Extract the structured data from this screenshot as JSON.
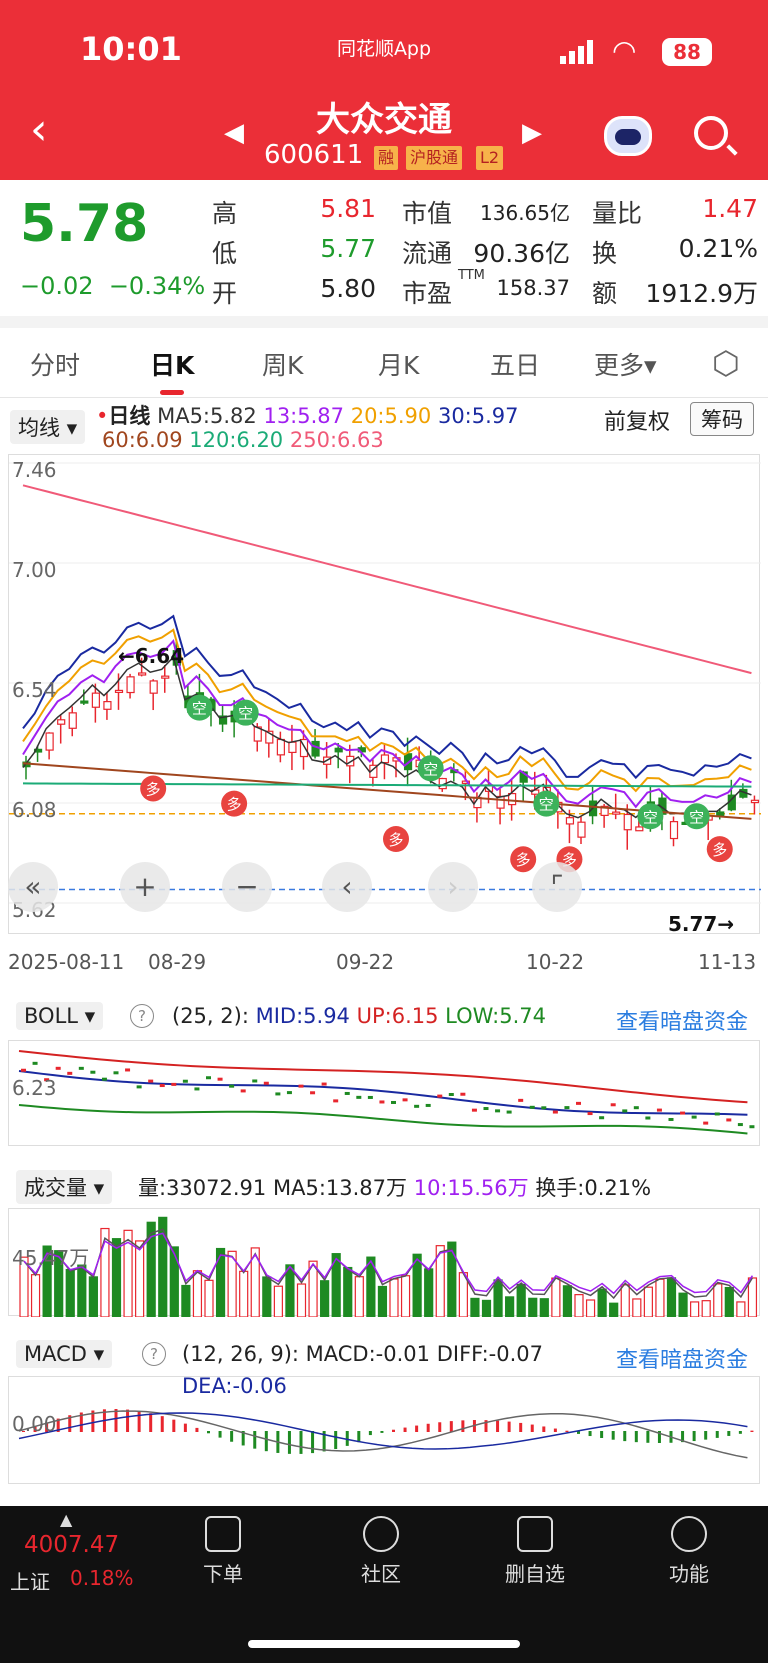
{
  "status": {
    "time": "10:01",
    "app": "同花顺App",
    "battery": "88"
  },
  "header": {
    "name": "大众交通",
    "code": "600611",
    "tags": [
      "融",
      "沪股通",
      "L2"
    ]
  },
  "quote": {
    "price": "5.78",
    "change": "−0.02",
    "pct": "−0.34%",
    "high_l": "高",
    "high": "5.81",
    "low_l": "低",
    "low": "5.77",
    "open_l": "开",
    "open": "5.80",
    "mcap_l": "市值",
    "mcap": "136.65亿",
    "float_l": "流通",
    "float": "90.36亿",
    "pe_l": "市盈",
    "pe_sup": "TTM",
    "pe": "158.37",
    "vr_l": "量比",
    "vr": "1.47",
    "turn_l": "换",
    "turn": "0.21%",
    "amt_l": "额",
    "amt": "1912.9万"
  },
  "tabs": [
    "分时",
    "日K",
    "周K",
    "月K",
    "五日",
    "更多▾"
  ],
  "kline": {
    "ma_btn": "均线",
    "label": "日线",
    "ma5": "MA5:5.82",
    "ma13": "13:5.87",
    "ma20": "20:5.90",
    "ma30": "30:5.97",
    "ma60": "60:6.09",
    "ma120": "120:6.20",
    "ma250": "250:6.63",
    "fq": "前复权",
    "chip": "筹码",
    "yticks": [
      "7.46",
      "7.00",
      "6.54",
      "6.08",
      "5.62"
    ],
    "dates": [
      "2025-08-11",
      "08-29",
      "09-22",
      "10-22",
      "11-13"
    ],
    "hi": "←6.64",
    "lo": "5.77→",
    "colors": {
      "ma5": "#333333",
      "ma13": "#a020f0",
      "ma20": "#f0a000",
      "ma30": "#1a2aa0",
      "ma60": "#a0461e",
      "ma120": "#1bab77",
      "ma250": "#f05a78"
    }
  },
  "boll": {
    "btn": "BOLL",
    "params": "(25, 2):",
    "mid": "MID:5.94",
    "up": "UP:6.15",
    "low": "LOW:5.74",
    "link": "查看暗盘资金",
    "ytick": "6.23"
  },
  "vol": {
    "btn": "成交量",
    "v": "量:33072.91",
    "ma5": "MA5:13.87万",
    "ma10": "10:15.56万",
    "turn": "换手:0.21%",
    "ytick": "45.47万"
  },
  "macd": {
    "btn": "MACD",
    "params": "(12, 26, 9):",
    "macd": "MACD:-0.01",
    "diff": "DIFF:-0.07",
    "dea": "DEA:-0.06",
    "link": "查看暗盘资金",
    "ytick": "0.00"
  },
  "bottom": {
    "index": "4007.47",
    "index_name": "上证",
    "index_pct": "0.18%",
    "items": [
      "下单",
      "社区",
      "删自选",
      "功能"
    ]
  }
}
